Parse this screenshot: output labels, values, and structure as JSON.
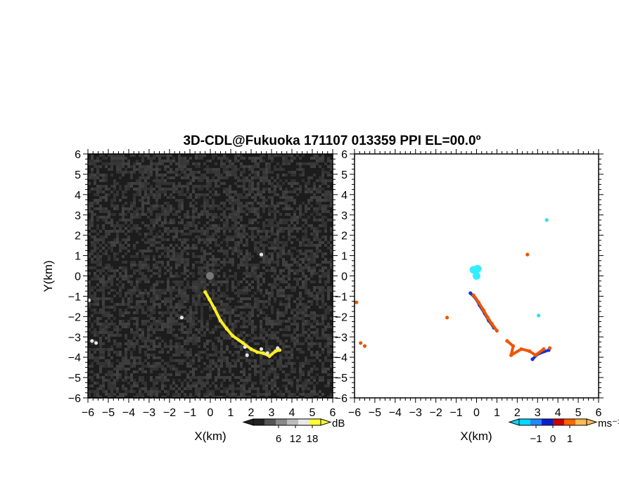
{
  "chart_data": [
    {
      "type": "heatmap",
      "title": "3D-CDL@Fukuoka 171107 013359 PPI EL=00.0º",
      "panel": "reflectivity",
      "xlabel": "X(km)",
      "ylabel": "Y(km)",
      "xlim": [
        -6,
        6
      ],
      "ylim": [
        -6,
        6
      ],
      "xticks": [
        "−6",
        "−5",
        "−4",
        "−3",
        "−2",
        "−1",
        "0",
        "1",
        "2",
        "3",
        "4",
        "5",
        "6"
      ],
      "yticks": [
        "6",
        "5",
        "4",
        "3",
        "2",
        "1",
        "0",
        "−1",
        "−2",
        "−3",
        "−4",
        "−5",
        "−6"
      ],
      "background_color": "#1c1c1c",
      "colorbar": {
        "ticks": [
          "6",
          "12",
          "18"
        ],
        "unit": "dB",
        "colors": [
          "#222222",
          "#555555",
          "#888888",
          "#bbbbbb",
          "#e8e8e8",
          "#ffff33"
        ]
      },
      "features": [
        {
          "name": "target",
          "color": "#777777",
          "points": [
            [
              -0.02,
              0.0
            ]
          ]
        },
        {
          "name": "plume",
          "color": "#ffee22",
          "points": [
            [
              -0.25,
              -0.8
            ],
            [
              -0.05,
              -1.15
            ],
            [
              0.2,
              -1.6
            ],
            [
              0.5,
              -2.2
            ],
            [
              0.8,
              -2.6
            ],
            [
              1.1,
              -2.95
            ],
            [
              1.6,
              -3.3
            ],
            [
              2.0,
              -3.6
            ],
            [
              2.3,
              -3.75
            ],
            [
              2.6,
              -3.8
            ],
            [
              2.9,
              -3.95
            ],
            [
              3.2,
              -3.7
            ],
            [
              3.4,
              -3.65
            ]
          ]
        },
        {
          "name": "plume-edge",
          "color": "#e6e6e6",
          "points": [
            [
              1.7,
              -3.5
            ],
            [
              1.8,
              -3.9
            ],
            [
              2.5,
              -3.6
            ],
            [
              2.8,
              -3.8
            ],
            [
              3.3,
              -3.55
            ],
            [
              -1.4,
              -2.05
            ],
            [
              2.5,
              1.05
            ],
            [
              -5.95,
              -1.2
            ],
            [
              -5.6,
              -3.3
            ],
            [
              -5.8,
              -3.2
            ]
          ]
        }
      ]
    },
    {
      "type": "heatmap",
      "panel": "doppler-velocity",
      "xlabel": "X(km)",
      "xlim": [
        -6,
        6
      ],
      "ylim": [
        -6,
        6
      ],
      "xticks": [
        "−6",
        "−5",
        "−4",
        "−3",
        "−2",
        "−1",
        "0",
        "1",
        "2",
        "3",
        "4",
        "5",
        "6"
      ],
      "yticks": [
        "6",
        "5",
        "4",
        "3",
        "2",
        "1",
        "0",
        "−1",
        "−2",
        "−3",
        "−4",
        "−5",
        "−6"
      ],
      "background_color": "#ffffff",
      "colorbar": {
        "ticks": [
          "−1",
          "0",
          "1"
        ],
        "unit": "ms⁻¹",
        "colors": [
          "#00d8ff",
          "#2288ff",
          "#0022cc",
          "#cc0000",
          "#ff6600",
          "#ffbb55"
        ]
      },
      "features": [
        {
          "name": "target",
          "color": "#33eeff",
          "points": [
            [
              0.0,
              0.0
            ],
            [
              -0.15,
              0.3
            ],
            [
              0.05,
              0.35
            ]
          ]
        },
        {
          "name": "approaching",
          "color": "#1133dd",
          "points": [
            [
              -0.3,
              -0.85
            ],
            [
              -0.05,
              -1.1
            ],
            [
              0.15,
              -1.45
            ],
            [
              0.4,
              -1.85
            ],
            [
              0.6,
              -2.2
            ],
            [
              0.85,
              -2.55
            ],
            [
              2.75,
              -4.1
            ],
            [
              3.0,
              -3.85
            ],
            [
              3.55,
              -3.65
            ]
          ]
        },
        {
          "name": "receding",
          "color": "#ee5500",
          "points": [
            [
              -0.15,
              -0.95
            ],
            [
              0.1,
              -1.3
            ],
            [
              0.35,
              -1.7
            ],
            [
              0.55,
              -2.05
            ],
            [
              0.75,
              -2.35
            ],
            [
              1.0,
              -2.7
            ],
            [
              1.5,
              -3.2
            ],
            [
              1.8,
              -3.45
            ],
            [
              1.7,
              -3.9
            ],
            [
              2.2,
              -3.6
            ],
            [
              2.6,
              -3.7
            ],
            [
              2.9,
              -3.9
            ],
            [
              3.3,
              -3.6
            ],
            [
              3.6,
              -3.55
            ],
            [
              -5.9,
              -1.3
            ],
            [
              -5.7,
              -3.3
            ],
            [
              -5.5,
              -3.45
            ],
            [
              2.5,
              1.05
            ],
            [
              -1.45,
              -2.05
            ]
          ]
        },
        {
          "name": "isolated",
          "color": "#33ddee",
          "points": [
            [
              3.45,
              2.75
            ],
            [
              3.05,
              -1.95
            ]
          ]
        }
      ]
    }
  ]
}
